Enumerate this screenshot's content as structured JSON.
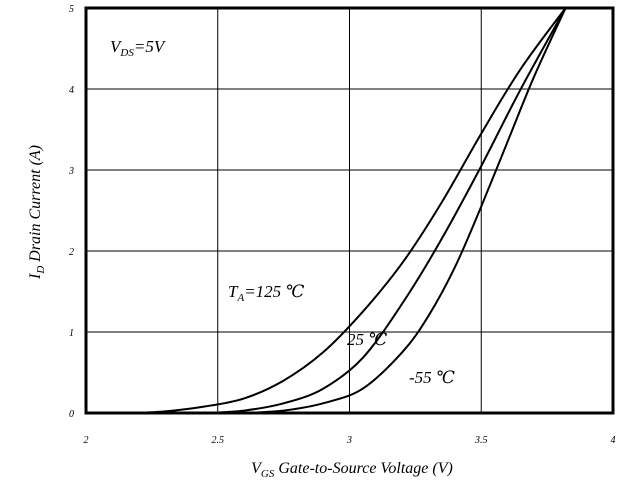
{
  "chart_data": {
    "type": "line",
    "title": "",
    "xlabel_main": "V",
    "xlabel_sub": "GS",
    "xlabel_rest": " Gate-to-Source Voltage (V)",
    "ylabel_main": "I",
    "ylabel_sub": "D",
    "ylabel_rest": " Drain Current (A)",
    "xlim": [
      2,
      4
    ],
    "ylim": [
      0,
      5
    ],
    "x_ticks": [
      {
        "value": 2,
        "label": "2"
      },
      {
        "value": 2.5,
        "label": "2.5"
      },
      {
        "value": 3,
        "label": "3"
      },
      {
        "value": 3.5,
        "label": "3.5"
      },
      {
        "value": 4,
        "label": "4"
      }
    ],
    "y_ticks": [
      {
        "value": 0,
        "label": "0"
      },
      {
        "value": 1,
        "label": "1"
      },
      {
        "value": 2,
        "label": "2"
      },
      {
        "value": 3,
        "label": "3"
      },
      {
        "value": 4,
        "label": "4"
      },
      {
        "value": 5,
        "label": "5"
      }
    ],
    "grid": true,
    "condition": {
      "main": "V",
      "sub": "DS",
      "rest": "=5V"
    },
    "series": [
      {
        "label_main": "T",
        "label_sub": "A",
        "label_rest": "=125 ℃",
        "x": [
          2.18,
          2.3,
          2.45,
          2.6,
          2.75,
          2.9,
          3.05,
          3.2,
          3.35,
          3.5,
          3.65,
          3.82
        ],
        "y": [
          0.0,
          0.02,
          0.08,
          0.18,
          0.4,
          0.75,
          1.25,
          1.85,
          2.6,
          3.45,
          4.25,
          5.0
        ]
      },
      {
        "label_main": "25 ℃",
        "label_sub": "",
        "label_rest": "",
        "x": [
          2.45,
          2.6,
          2.75,
          2.9,
          3.05,
          3.2,
          3.35,
          3.5,
          3.65,
          3.82
        ],
        "y": [
          0.0,
          0.03,
          0.12,
          0.3,
          0.68,
          1.35,
          2.15,
          3.05,
          4.0,
          5.0
        ]
      },
      {
        "label_main": "-55 ℃",
        "label_sub": "",
        "label_rest": "",
        "x": [
          2.6,
          2.75,
          2.9,
          3.05,
          3.2,
          3.3,
          3.4,
          3.5,
          3.6,
          3.7,
          3.82
        ],
        "y": [
          0.0,
          0.03,
          0.12,
          0.3,
          0.75,
          1.2,
          1.8,
          2.55,
          3.35,
          4.15,
          5.0
        ]
      }
    ]
  }
}
